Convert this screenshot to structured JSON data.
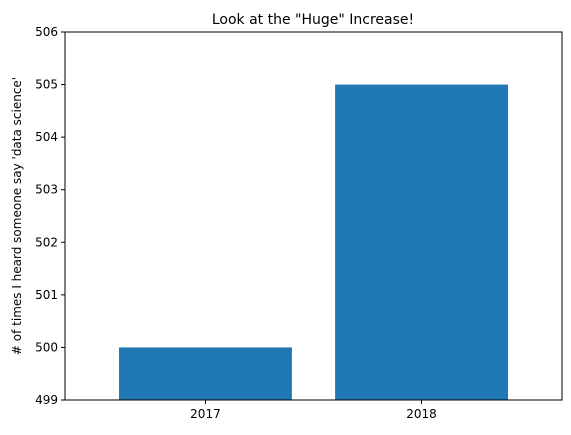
{
  "chart_data": {
    "type": "bar",
    "title": "Look at the \"Huge\" Increase!",
    "xlabel": "",
    "ylabel": "# of times I heard someone say 'data science'",
    "categories": [
      "2017",
      "2018"
    ],
    "values": [
      500,
      505
    ],
    "ylim": [
      499,
      506
    ],
    "yticks": [
      499,
      500,
      501,
      502,
      503,
      504,
      505,
      506
    ],
    "bar_color": "#1f77b4",
    "grid": false,
    "legend": "none"
  }
}
